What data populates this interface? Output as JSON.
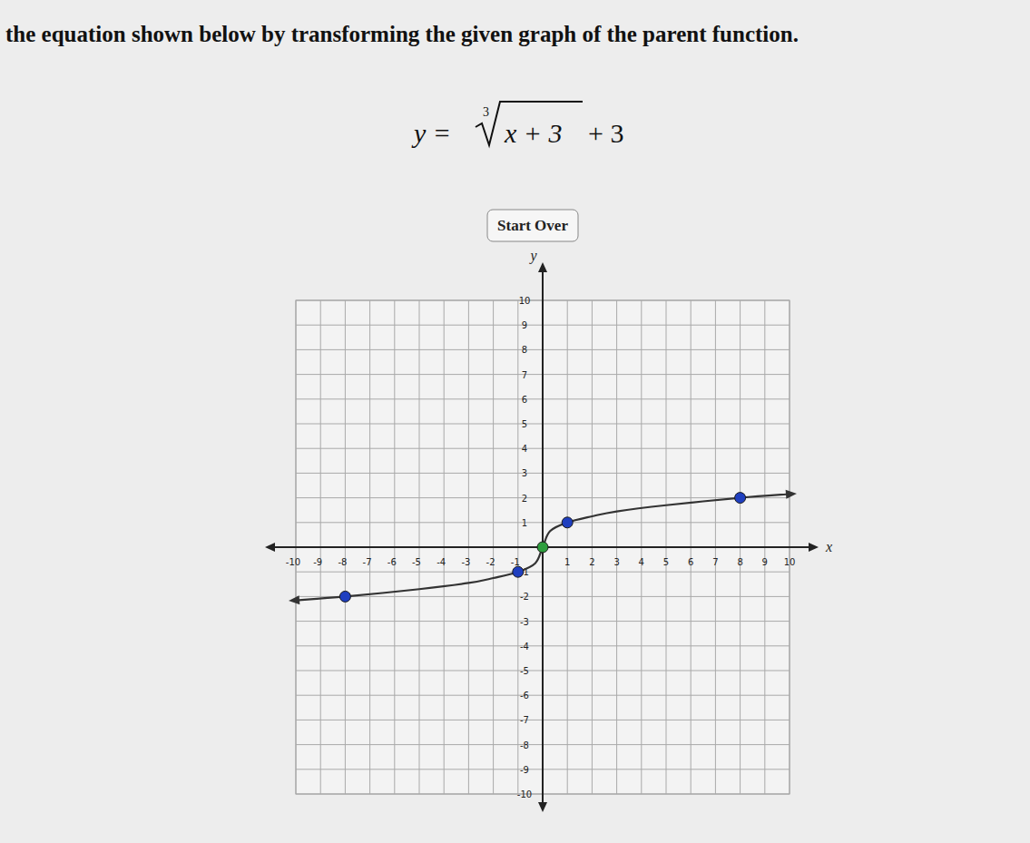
{
  "chart_data": {
    "type": "line",
    "title": "the equation shown below by transforming the given graph of the parent function.",
    "annotations": [
      "y =",
      "3",
      "x + 3",
      "+ 3",
      "Start Over"
    ],
    "x_label": "x",
    "y_label": "y",
    "xlim": [
      -10,
      10
    ],
    "ylim": [
      -10,
      10
    ],
    "xticks": [
      -10,
      -9,
      -8,
      -7,
      -6,
      -5,
      -4,
      -3,
      -2,
      -1,
      1,
      2,
      3,
      4,
      5,
      6,
      7,
      8,
      9,
      10
    ],
    "yticks": [
      -10,
      -9,
      -8,
      -7,
      -6,
      -5,
      -4,
      -3,
      -2,
      -1,
      1,
      2,
      3,
      4,
      5,
      6,
      7,
      8,
      9,
      10
    ],
    "grid": true,
    "series": [
      {
        "type": "line",
        "color": "#333333",
        "x": [
          -10,
          -8,
          -5,
          -3,
          -2,
          -1,
          -0.3,
          0,
          0.3,
          1,
          2,
          3,
          5,
          8,
          10
        ],
        "values": [
          -2.15,
          -2,
          -1.7,
          -1.45,
          -1.25,
          -1,
          -0.65,
          0,
          0.65,
          1,
          1.25,
          1.45,
          1.7,
          2,
          2.15
        ]
      },
      {
        "type": "scatter",
        "marker": "circle",
        "x": [
          -8,
          -1,
          0,
          1,
          8
        ],
        "values": [
          -2,
          -1,
          0,
          1,
          2
        ],
        "colors": [
          "#1f3fbf",
          "#1f3fbf",
          "#2e9e3e",
          "#1f3fbf",
          "#1f3fbf"
        ]
      }
    ]
  }
}
